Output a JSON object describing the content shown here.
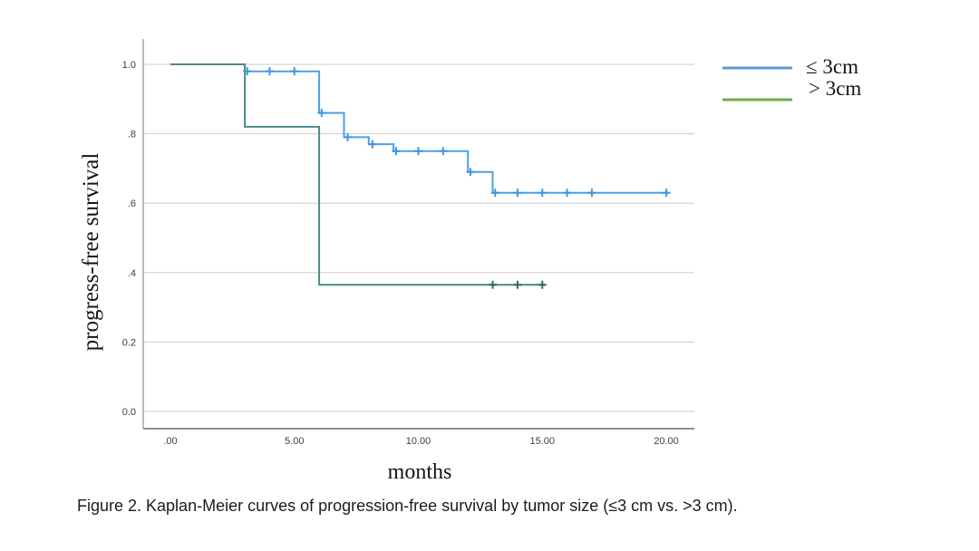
{
  "figure": {
    "caption": "Figure 2. Kaplan-Meier curves of progression-free survival by tumor size (≤3 cm vs. >3 cm)."
  },
  "chart_data": {
    "type": "line",
    "subtype": "kaplan-meier-step",
    "title": "",
    "xlabel": "months",
    "ylabel": "progress-free survival",
    "xlim": [
      0,
      20
    ],
    "ylim": [
      0.0,
      1.0
    ],
    "grid": "horizontal",
    "legend_position": "outside-top-right",
    "colors": {
      "gridline": "#cbcbcb",
      "y_axis_line": "#a8a8a8",
      "x_axis_line": "#8f8f8f"
    },
    "x_ticks": [
      {
        "value": 0,
        "label": ".00"
      },
      {
        "value": 5,
        "label": "5.00"
      },
      {
        "value": 10,
        "label": "10.00"
      },
      {
        "value": 15,
        "label": "15.00"
      },
      {
        "value": 20,
        "label": "20.00"
      }
    ],
    "y_ticks": [
      {
        "value": 0.0,
        "label": "0.0"
      },
      {
        "value": 0.2,
        "label": "0.2"
      },
      {
        "value": 0.4,
        "label": ".4"
      },
      {
        "value": 0.6,
        "label": ".6"
      },
      {
        "value": 0.8,
        "label": ".8"
      },
      {
        "value": 1.0,
        "label": "1.0"
      }
    ],
    "series": [
      {
        "name": "≤ 3cm",
        "color": "#4f9fe6",
        "legend_color": "#5b9bd5",
        "censor_color": "#3f97e3",
        "steps": [
          [
            0,
            1.0
          ],
          [
            3,
            1.0
          ],
          [
            3,
            0.98
          ],
          [
            6,
            0.98
          ],
          [
            6,
            0.86
          ],
          [
            7,
            0.86
          ],
          [
            7,
            0.79
          ],
          [
            8,
            0.79
          ],
          [
            8,
            0.77
          ],
          [
            9,
            0.77
          ],
          [
            9,
            0.75
          ],
          [
            12,
            0.75
          ],
          [
            12,
            0.69
          ],
          [
            13,
            0.69
          ],
          [
            13,
            0.63
          ],
          [
            20.1,
            0.63
          ]
        ],
        "censors": [
          [
            3.1,
            0.98
          ],
          [
            4,
            0.98
          ],
          [
            5,
            0.98
          ],
          [
            6.1,
            0.86
          ],
          [
            7.15,
            0.79
          ],
          [
            8.15,
            0.77
          ],
          [
            9.1,
            0.75
          ],
          [
            10,
            0.75
          ],
          [
            11,
            0.75
          ],
          [
            12.1,
            0.69
          ],
          [
            13.1,
            0.63
          ],
          [
            14,
            0.63
          ],
          [
            15,
            0.63
          ],
          [
            16,
            0.63
          ],
          [
            17,
            0.63
          ],
          [
            20,
            0.63
          ]
        ]
      },
      {
        "name": "> 3cm",
        "color": "#4b8b86",
        "legend_color": "#70ad47",
        "censor_color": "#2e6b5f",
        "steps": [
          [
            0,
            1.0
          ],
          [
            3,
            1.0
          ],
          [
            3,
            0.82
          ],
          [
            6,
            0.82
          ],
          [
            6,
            0.365
          ],
          [
            15.1,
            0.365
          ]
        ],
        "censors": [
          [
            13,
            0.365
          ],
          [
            14,
            0.365
          ],
          [
            15,
            0.365
          ]
        ]
      }
    ]
  }
}
